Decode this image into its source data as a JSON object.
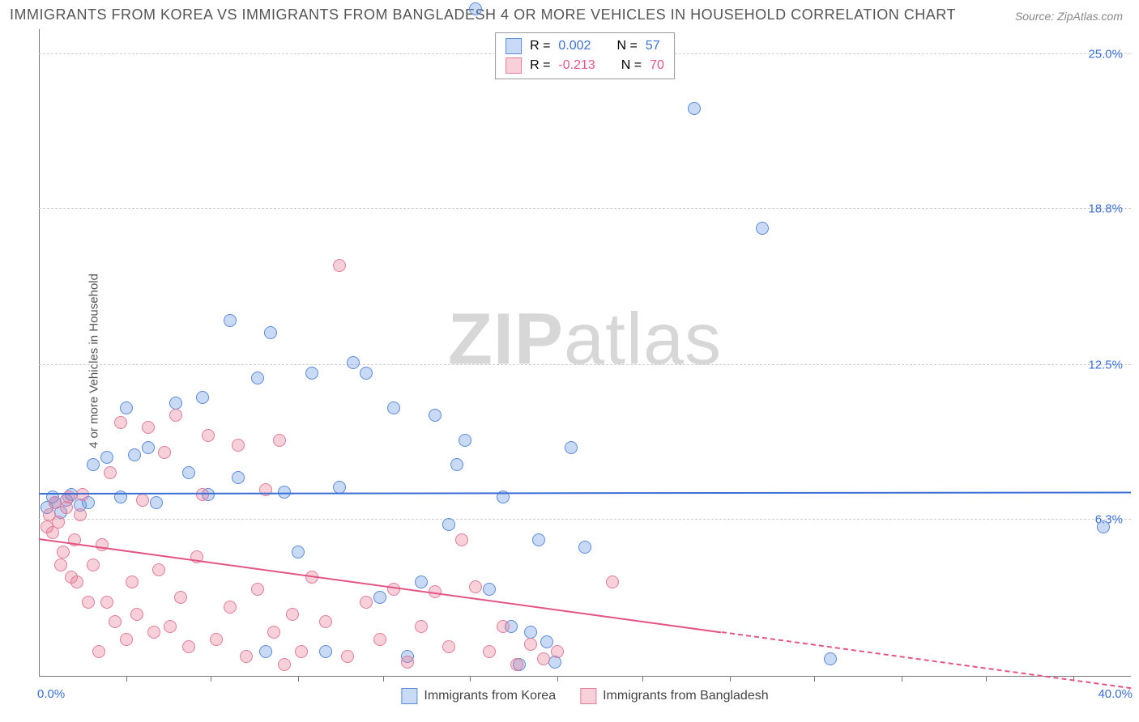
{
  "title": "IMMIGRANTS FROM KOREA VS IMMIGRANTS FROM BANGLADESH 4 OR MORE VEHICLES IN HOUSEHOLD CORRELATION CHART",
  "source": "Source: ZipAtlas.com",
  "ylabel": "4 or more Vehicles in Household",
  "watermark_bold": "ZIP",
  "watermark_rest": "atlas",
  "chart": {
    "type": "scatter",
    "xlim": [
      0,
      40
    ],
    "ylim": [
      0,
      26
    ],
    "x_tick_min_label": "0.0%",
    "x_tick_max_label": "40.0%",
    "x_ticks": [
      3.2,
      6.3,
      9.5,
      12.6,
      15.8,
      19.0,
      22.1,
      25.3,
      28.4,
      31.6,
      34.7,
      37.9
    ],
    "y_ticks": [
      {
        "v": 6.3,
        "label": "6.3%"
      },
      {
        "v": 12.5,
        "label": "12.5%"
      },
      {
        "v": 18.8,
        "label": "18.8%"
      },
      {
        "v": 25.0,
        "label": "25.0%"
      }
    ],
    "grid_color": "#d0d0d0",
    "background_color": "#ffffff",
    "axis_color": "#777777",
    "label_color_x": "#3b6fd6",
    "label_color_y": "#3b6fd6",
    "series": [
      {
        "name": "Immigrants from Korea",
        "color_fill": "rgba(100,150,230,0.35)",
        "color_stroke": "#5a8bd8",
        "trend_color": "#3b6fd6",
        "R": "0.002",
        "N": "57",
        "trend": {
          "x1": 0,
          "y1": 7.3,
          "x2": 40,
          "y2": 7.35,
          "solid_until_x": 40
        },
        "points": [
          [
            0.3,
            6.8
          ],
          [
            0.5,
            7.2
          ],
          [
            0.6,
            7.0
          ],
          [
            0.8,
            6.6
          ],
          [
            1.0,
            7.1
          ],
          [
            1.2,
            7.3
          ],
          [
            1.5,
            6.9
          ],
          [
            1.8,
            7.0
          ],
          [
            2.0,
            8.5
          ],
          [
            2.5,
            8.8
          ],
          [
            3.0,
            7.2
          ],
          [
            3.2,
            10.8
          ],
          [
            3.5,
            8.9
          ],
          [
            4.0,
            9.2
          ],
          [
            4.3,
            7.0
          ],
          [
            5.0,
            11.0
          ],
          [
            5.5,
            8.2
          ],
          [
            6.0,
            11.2
          ],
          [
            6.2,
            7.3
          ],
          [
            7.0,
            14.3
          ],
          [
            7.3,
            8.0
          ],
          [
            8.0,
            12.0
          ],
          [
            8.3,
            1.0
          ],
          [
            8.5,
            13.8
          ],
          [
            9.0,
            7.4
          ],
          [
            9.5,
            5.0
          ],
          [
            10.0,
            12.2
          ],
          [
            10.5,
            1.0
          ],
          [
            11.0,
            7.6
          ],
          [
            11.5,
            12.6
          ],
          [
            12.0,
            12.2
          ],
          [
            12.5,
            3.2
          ],
          [
            13.0,
            10.8
          ],
          [
            13.5,
            0.8
          ],
          [
            14.0,
            3.8
          ],
          [
            14.5,
            10.5
          ],
          [
            15.0,
            6.1
          ],
          [
            15.3,
            8.5
          ],
          [
            15.6,
            9.5
          ],
          [
            16.0,
            26.8
          ],
          [
            16.5,
            3.5
          ],
          [
            17.0,
            7.2
          ],
          [
            17.3,
            2.0
          ],
          [
            17.6,
            0.5
          ],
          [
            18.0,
            1.8
          ],
          [
            18.3,
            5.5
          ],
          [
            18.6,
            1.4
          ],
          [
            18.9,
            0.6
          ],
          [
            19.5,
            9.2
          ],
          [
            20.0,
            5.2
          ],
          [
            24.0,
            22.8
          ],
          [
            26.5,
            18.0
          ],
          [
            29.0,
            0.7
          ],
          [
            39.0,
            6.0
          ]
        ]
      },
      {
        "name": "Immigrants from Bangladesh",
        "color_fill": "rgba(235,120,150,0.35)",
        "color_stroke": "#e07d9a",
        "trend_color": "#e35583",
        "R": "-0.213",
        "N": "70",
        "trend": {
          "x1": 0,
          "y1": 5.5,
          "x2": 40,
          "y2": -0.5,
          "solid_until_x": 25
        },
        "points": [
          [
            0.3,
            6.0
          ],
          [
            0.4,
            6.5
          ],
          [
            0.5,
            5.8
          ],
          [
            0.6,
            7.0
          ],
          [
            0.7,
            6.2
          ],
          [
            0.8,
            4.5
          ],
          [
            0.9,
            5.0
          ],
          [
            1.0,
            6.8
          ],
          [
            1.1,
            7.2
          ],
          [
            1.2,
            4.0
          ],
          [
            1.3,
            5.5
          ],
          [
            1.4,
            3.8
          ],
          [
            1.5,
            6.5
          ],
          [
            1.6,
            7.3
          ],
          [
            1.8,
            3.0
          ],
          [
            2.0,
            4.5
          ],
          [
            2.2,
            1.0
          ],
          [
            2.3,
            5.3
          ],
          [
            2.5,
            3.0
          ],
          [
            2.6,
            8.2
          ],
          [
            2.8,
            2.2
          ],
          [
            3.0,
            10.2
          ],
          [
            3.2,
            1.5
          ],
          [
            3.4,
            3.8
          ],
          [
            3.6,
            2.5
          ],
          [
            3.8,
            7.1
          ],
          [
            4.0,
            10.0
          ],
          [
            4.2,
            1.8
          ],
          [
            4.4,
            4.3
          ],
          [
            4.6,
            9.0
          ],
          [
            4.8,
            2.0
          ],
          [
            5.0,
            10.5
          ],
          [
            5.2,
            3.2
          ],
          [
            5.5,
            1.2
          ],
          [
            5.8,
            4.8
          ],
          [
            6.0,
            7.3
          ],
          [
            6.2,
            9.7
          ],
          [
            6.5,
            1.5
          ],
          [
            7.0,
            2.8
          ],
          [
            7.3,
            9.3
          ],
          [
            7.6,
            0.8
          ],
          [
            8.0,
            3.5
          ],
          [
            8.3,
            7.5
          ],
          [
            8.6,
            1.8
          ],
          [
            8.8,
            9.5
          ],
          [
            9.0,
            0.5
          ],
          [
            9.3,
            2.5
          ],
          [
            9.6,
            1.0
          ],
          [
            10.0,
            4.0
          ],
          [
            10.5,
            2.2
          ],
          [
            11.0,
            16.5
          ],
          [
            11.3,
            0.8
          ],
          [
            12.0,
            3.0
          ],
          [
            12.5,
            1.5
          ],
          [
            13.0,
            3.5
          ],
          [
            13.5,
            0.6
          ],
          [
            14.0,
            2.0
          ],
          [
            14.5,
            3.4
          ],
          [
            15.0,
            1.2
          ],
          [
            15.5,
            5.5
          ],
          [
            16.0,
            3.6
          ],
          [
            16.5,
            1.0
          ],
          [
            17.0,
            2.0
          ],
          [
            17.5,
            0.5
          ],
          [
            18.0,
            1.3
          ],
          [
            18.5,
            0.7
          ],
          [
            19.0,
            1.0
          ],
          [
            21.0,
            3.8
          ]
        ]
      }
    ],
    "legend_stats_labels": {
      "R": "R =",
      "N": "N ="
    },
    "legend_bottom": [
      {
        "label": "Immigrants from Korea",
        "fill": "rgba(100,150,230,0.35)",
        "stroke": "#5a8bd8"
      },
      {
        "label": "Immigrants from Bangladesh",
        "fill": "rgba(235,120,150,0.35)",
        "stroke": "#e07d9a"
      }
    ]
  }
}
